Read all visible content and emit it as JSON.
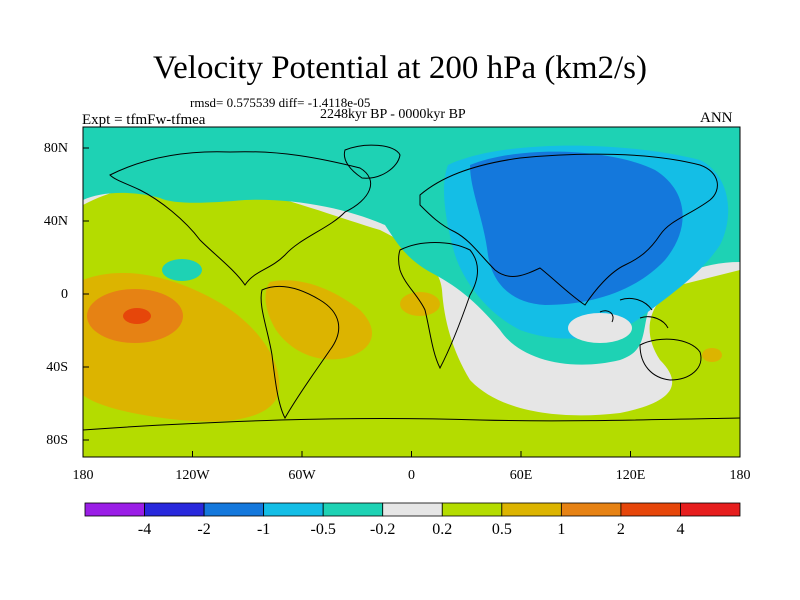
{
  "title": "Velocity Potential at 200 hPa (km2/s)",
  "stats_line": "rmsd= 0.575539 diff= -1.4118e-05",
  "period": "2248kyr BP - 0000kyr BP",
  "experiment": "Expt = tfmFw-tfmea",
  "season": "ANN",
  "lat_labels": [
    "80N",
    "40N",
    "0",
    "40S",
    "80S"
  ],
  "lon_labels": [
    "180",
    "120W",
    "60W",
    "0",
    "60E",
    "120E",
    "180"
  ],
  "colorbar": {
    "colors": [
      "#9a1ee6",
      "#2828dc",
      "#1478dc",
      "#14bee6",
      "#1ed2b4",
      "#e6e6e6",
      "#b4dc00",
      "#dcb400",
      "#e68214",
      "#e6460a",
      "#e61e1e"
    ],
    "labels": [
      "-4",
      "-2",
      "-1",
      "-0.5",
      "-0.2",
      "0.2",
      "0.5",
      "1",
      "2",
      "4"
    ]
  }
}
